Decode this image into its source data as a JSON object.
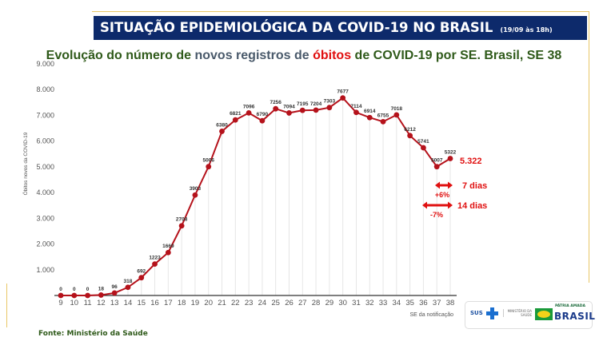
{
  "header": {
    "title": "SITUAÇÃO EPIDEMIOLÓGICA DA COVID-19 NO BRASIL",
    "date": "(19/09 às 18h)"
  },
  "subtitle": {
    "part1": "Evolução do número de",
    "part2": "novos registros de",
    "part3": "óbitos",
    "part4": "de COVID-19 por SE. Brasil, SE 38"
  },
  "annotations": {
    "latest": "5.322",
    "week_label": "7 dias",
    "week_change": "+6%",
    "twoweek_label": "14 dias",
    "twoweek_change": "-7%"
  },
  "footer": {
    "source": "Fonte: Ministério da Saúde",
    "logo_sus": "SUS",
    "logo_ministerio": "MINISTÉRIO DA SAÚDE",
    "logo_patria": "PÁTRIA AMADA",
    "logo_brasil": "BRASIL"
  },
  "colors": {
    "line": "#b5121b",
    "banner": "#0d2a6b",
    "accent": "#e01010"
  },
  "chart_data": {
    "type": "line",
    "title": "Evolução do número de novos registros de óbitos de COVID-19 por SE. Brasil, SE 38",
    "xlabel": "SE da notificação",
    "ylabel": "Óbitos novos da COVID-19",
    "ylim": [
      0,
      9000
    ],
    "yticks": [
      0,
      1000,
      2000,
      3000,
      4000,
      5000,
      6000,
      7000,
      8000,
      9000
    ],
    "ytick_labels": [
      "",
      "1.000",
      "2.000",
      "3.000",
      "4.000",
      "5.000",
      "6.000",
      "7.000",
      "8.000",
      "9.000"
    ],
    "x": [
      9,
      10,
      11,
      12,
      13,
      14,
      15,
      16,
      17,
      18,
      19,
      20,
      21,
      22,
      23,
      24,
      25,
      26,
      27,
      28,
      29,
      30,
      31,
      32,
      33,
      34,
      35,
      36,
      37,
      38
    ],
    "values": [
      0,
      0,
      0,
      18,
      96,
      318,
      692,
      1223,
      1669,
      2708,
      3903,
      5006,
      6380,
      6821,
      7096,
      6790,
      7256,
      7094,
      7195,
      7204,
      7303,
      7677,
      7114,
      6914,
      6755,
      7018,
      6212,
      5741,
      5007,
      5322
    ],
    "grid": "vertical"
  }
}
